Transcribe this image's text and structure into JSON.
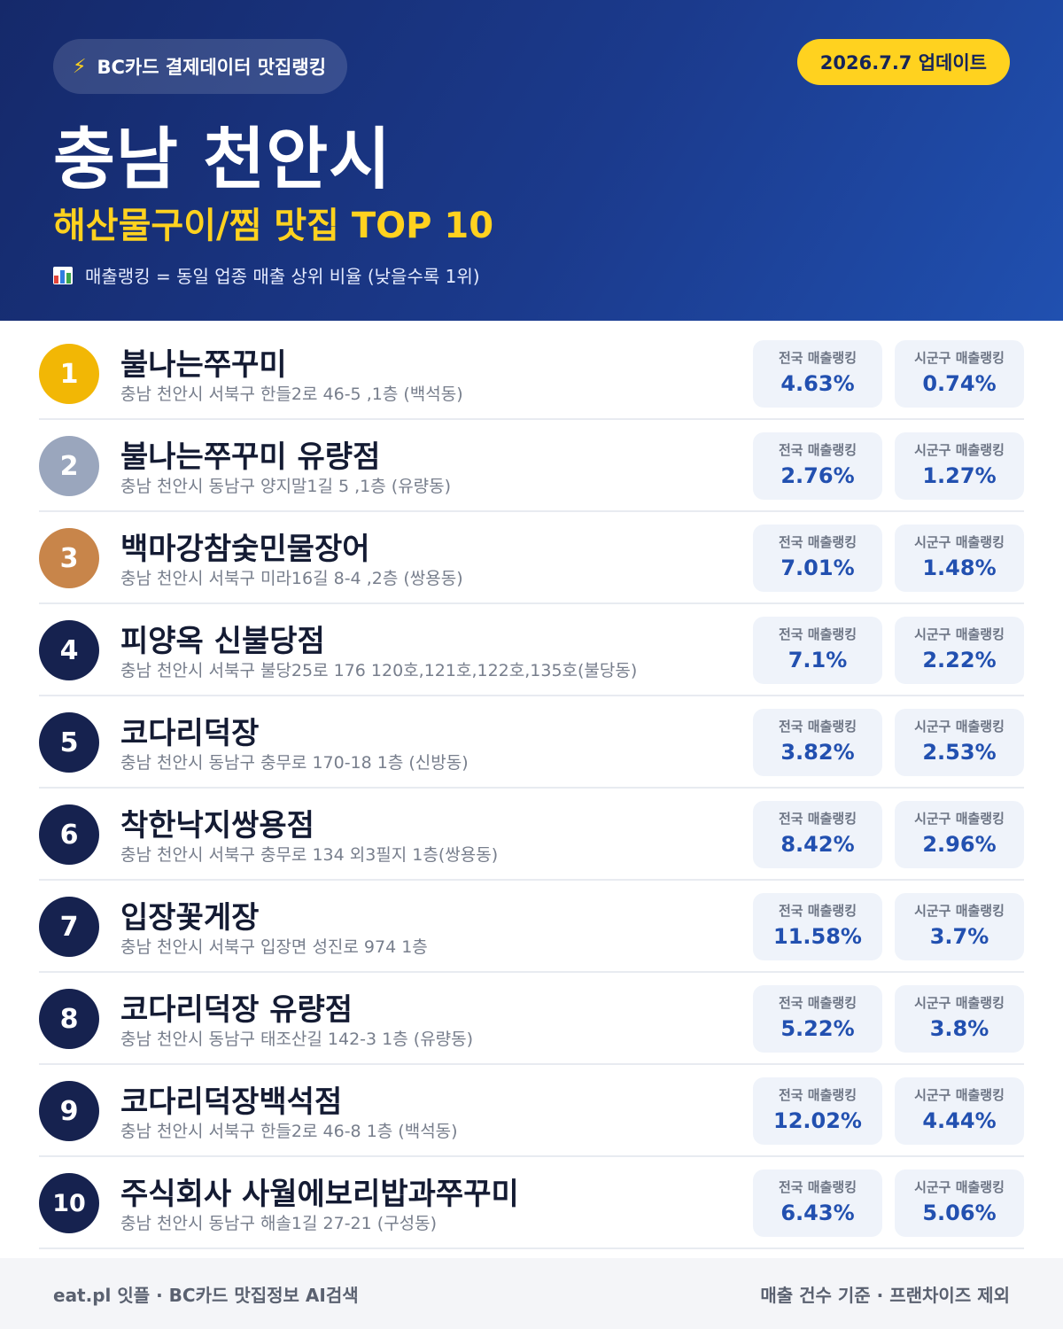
{
  "header": {
    "source_icon": "lightning-bolt-icon",
    "source_label": "BC카드 결제데이터 맛집랭킹",
    "update_label": "2026.7.7 업데이트",
    "city_title": "충남 천안시",
    "subtitle": "해산물구이/찜 맛집 TOP 10",
    "note_icon": "bar-chart-icon",
    "note": "매출랭킹 = 동일 업종 매출 상위 비율 (낮을수록 1위)",
    "colors": {
      "background": "#1b3a8c",
      "accent": "#ffd21f"
    }
  },
  "rank_colors": {
    "1": "#f2b705",
    "2": "#9aa6bd",
    "3": "#c8854a",
    "default": "#16224f"
  },
  "stat_labels": {
    "national": "전국 매출랭킹",
    "local": "시군구 매출랭킹"
  },
  "restaurants": [
    {
      "rank": "1",
      "name": "불나는쭈꾸미",
      "address": "충남 천안시 서북구 한들2로 46-5 ,1층 (백석동)",
      "national": "4.63%",
      "local": "0.74%"
    },
    {
      "rank": "2",
      "name": "불나는쭈꾸미 유량점",
      "address": "충남 천안시 동남구 양지말1길 5 ,1층 (유량동)",
      "national": "2.76%",
      "local": "1.27%"
    },
    {
      "rank": "3",
      "name": "백마강참숯민물장어",
      "address": "충남 천안시 서북구 미라16길 8-4 ,2층 (쌍용동)",
      "national": "7.01%",
      "local": "1.48%"
    },
    {
      "rank": "4",
      "name": "피양옥 신불당점",
      "address": "충남 천안시 서북구 불당25로 176 120호,121호,122호,135호(불당동)",
      "national": "7.1%",
      "local": "2.22%"
    },
    {
      "rank": "5",
      "name": "코다리덕장",
      "address": "충남 천안시 동남구 충무로 170-18 1층 (신방동)",
      "national": "3.82%",
      "local": "2.53%"
    },
    {
      "rank": "6",
      "name": "착한낙지쌍용점",
      "address": "충남 천안시 서북구 충무로 134 외3필지 1층(쌍용동)",
      "national": "8.42%",
      "local": "2.96%"
    },
    {
      "rank": "7",
      "name": "입장꽃게장",
      "address": "충남 천안시 서북구 입장면 성진로 974 1층",
      "national": "11.58%",
      "local": "3.7%"
    },
    {
      "rank": "8",
      "name": "코다리덕장 유량점",
      "address": "충남 천안시 동남구 태조산길 142-3 1층 (유량동)",
      "national": "5.22%",
      "local": "3.8%"
    },
    {
      "rank": "9",
      "name": "코다리덕장백석점",
      "address": "충남 천안시 서북구 한들2로 46-8 1층 (백석동)",
      "national": "12.02%",
      "local": "4.44%"
    },
    {
      "rank": "10",
      "name": "주식회사 사월에보리밥과쭈꾸미",
      "address": "충남 천안시 동남구 해솔1길 27-21 (구성동)",
      "national": "6.43%",
      "local": "5.06%"
    }
  ],
  "footer": {
    "left": "eat.pl 잇플 · BC카드 맛집정보 AI검색",
    "right": "매출 건수 기준 · 프랜차이즈 제외"
  }
}
